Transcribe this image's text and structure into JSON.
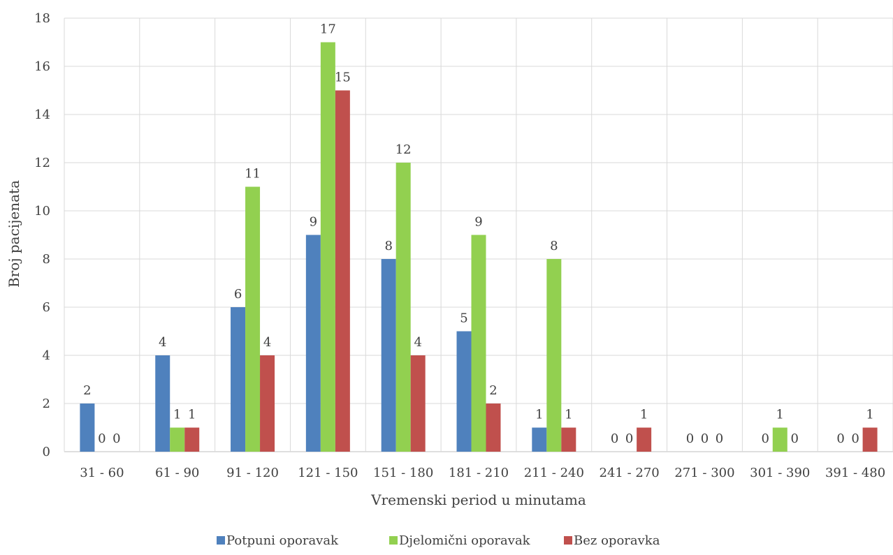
{
  "chart_data": {
    "type": "bar",
    "title": "",
    "xlabel": "Vremenski period u minutama",
    "ylabel": "Broj pacijenata",
    "ylim": [
      0,
      18
    ],
    "ytick_step": 2,
    "grid": true,
    "legend_position": "bottom",
    "categories": [
      "31 - 60",
      "61 - 90",
      "91 - 120",
      "121 - 150",
      "151 - 180",
      "181 - 210",
      "211 - 240",
      "241 - 270",
      "271 - 300",
      "301 - 390",
      "391 - 480"
    ],
    "series": [
      {
        "name": "Potpuni oporavak",
        "color": "#4f81bd",
        "values": [
          2,
          4,
          6,
          9,
          8,
          5,
          1,
          0,
          0,
          0,
          0
        ]
      },
      {
        "name": "Djelomični oporavak",
        "color": "#92d050",
        "values": [
          0,
          1,
          11,
          17,
          12,
          9,
          8,
          0,
          0,
          1,
          0
        ]
      },
      {
        "name": "Bez oporavka",
        "color": "#c0504d",
        "values": [
          0,
          1,
          4,
          15,
          4,
          2,
          1,
          1,
          0,
          0,
          1
        ]
      }
    ]
  }
}
